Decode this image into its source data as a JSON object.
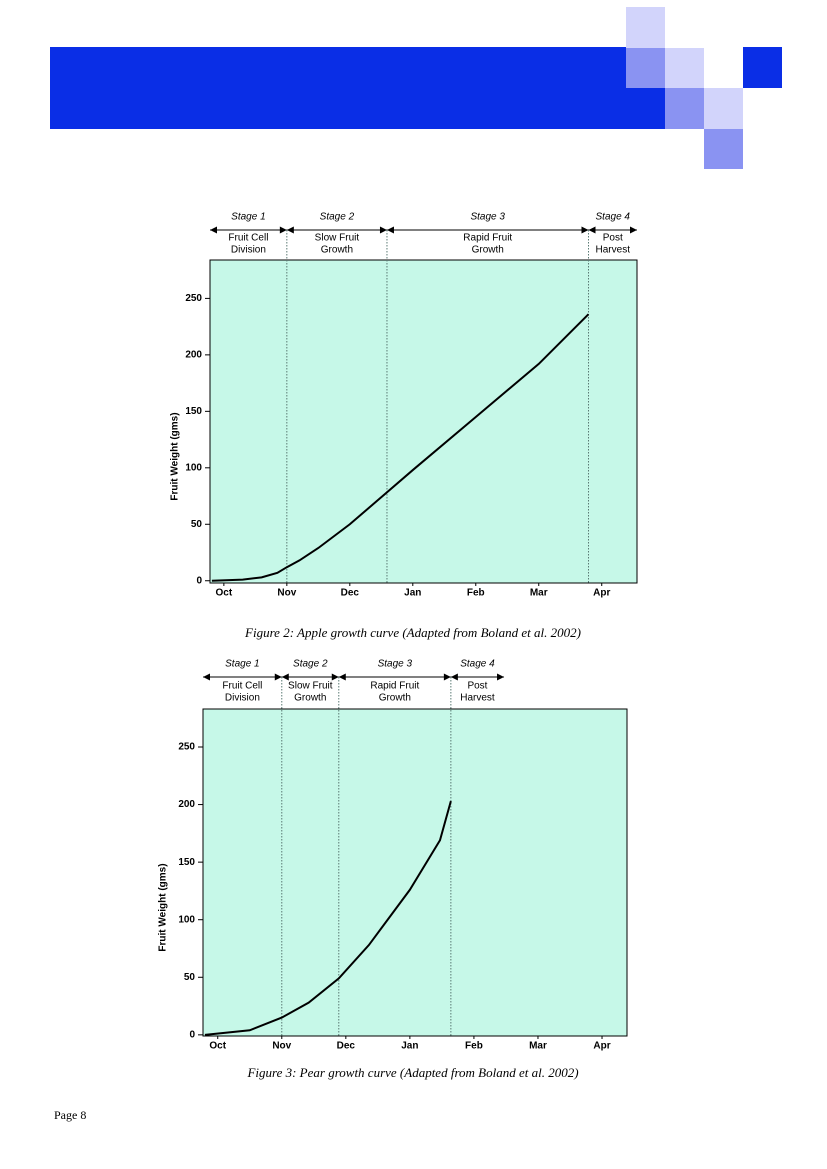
{
  "chart_data": [
    {
      "type": "line",
      "caption": "Figure 2: Apple growth curve (Adapted from Boland et al. 2002)",
      "y_label": "Fruit Weight (gms)",
      "x": [
        -0.19,
        0.3,
        0.6,
        0.85,
        1.0,
        1.2,
        1.5,
        2.0,
        3.0,
        4.0,
        5.0,
        5.79
      ],
      "series": [
        {
          "color": "#000000",
          "values": [
            0,
            1,
            3,
            7,
            12,
            18,
            29,
            50,
            98,
            145,
            192,
            236
          ]
        }
      ],
      "xlim": [
        -0.22,
        6.56
      ],
      "ylim": [
        -2,
        284
      ],
      "xticks": [
        {
          "value": 0,
          "label": "Oct"
        },
        {
          "value": 1,
          "label": "Nov"
        },
        {
          "value": 2,
          "label": "Dec"
        },
        {
          "value": 3,
          "label": "Jan"
        },
        {
          "value": 4,
          "label": "Feb"
        },
        {
          "value": 5,
          "label": "Mar"
        },
        {
          "value": 6,
          "label": "Apr"
        }
      ],
      "yticks": [
        0,
        50,
        100,
        150,
        200,
        250
      ],
      "stages": [
        {
          "name": "Stage 1",
          "lines": [
            "Fruit Cell",
            "Division"
          ],
          "start": -0.22,
          "end": 1.0
        },
        {
          "name": "Stage 2",
          "lines": [
            "Slow Fruit",
            "Growth"
          ],
          "start": 1.0,
          "end": 2.59
        },
        {
          "name": "Stage 3",
          "lines": [
            "Rapid Fruit",
            "Growth"
          ],
          "start": 2.59,
          "end": 5.79
        },
        {
          "name": "Stage 4",
          "lines": [
            "Post",
            "Harvest"
          ],
          "start": 5.79,
          "end": 6.56
        }
      ],
      "background": "#c6f8e8"
    },
    {
      "type": "line",
      "caption": "Figure 3: Pear growth curve (Adapted from Boland et al. 2002)",
      "y_label": "Fruit Weight (gms)",
      "x": [
        -0.2,
        0.5,
        1.0,
        1.42,
        1.89,
        2.36,
        3.0,
        3.47,
        3.64
      ],
      "series": [
        {
          "color": "#000000",
          "values": [
            0,
            4,
            15,
            28,
            49,
            78,
            126,
            169,
            203
          ]
        }
      ],
      "xlim": [
        -0.23,
        6.39
      ],
      "ylim": [
        -1,
        283
      ],
      "xticks": [
        {
          "value": 0,
          "label": "Oct"
        },
        {
          "value": 1,
          "label": "Nov"
        },
        {
          "value": 2,
          "label": "Dec"
        },
        {
          "value": 3,
          "label": "Jan"
        },
        {
          "value": 4,
          "label": "Feb"
        },
        {
          "value": 5,
          "label": "Mar"
        },
        {
          "value": 6,
          "label": "Apr"
        }
      ],
      "yticks": [
        0,
        50,
        100,
        150,
        200,
        250
      ],
      "stages": [
        {
          "name": "Stage 1",
          "lines": [
            "Fruit Cell",
            "Division"
          ],
          "start": -0.23,
          "end": 1.0
        },
        {
          "name": "Stage 2",
          "lines": [
            "Slow Fruit",
            "Growth"
          ],
          "start": 1.0,
          "end": 1.89
        },
        {
          "name": "Stage 3",
          "lines": [
            "Rapid Fruit",
            "Growth"
          ],
          "start": 1.89,
          "end": 3.64
        },
        {
          "name": "Stage 4",
          "lines": [
            "Post",
            "Harvest"
          ],
          "start": 3.64,
          "end": 4.47
        }
      ],
      "background": "#c6f8e8"
    }
  ],
  "page_label": "Page 8"
}
